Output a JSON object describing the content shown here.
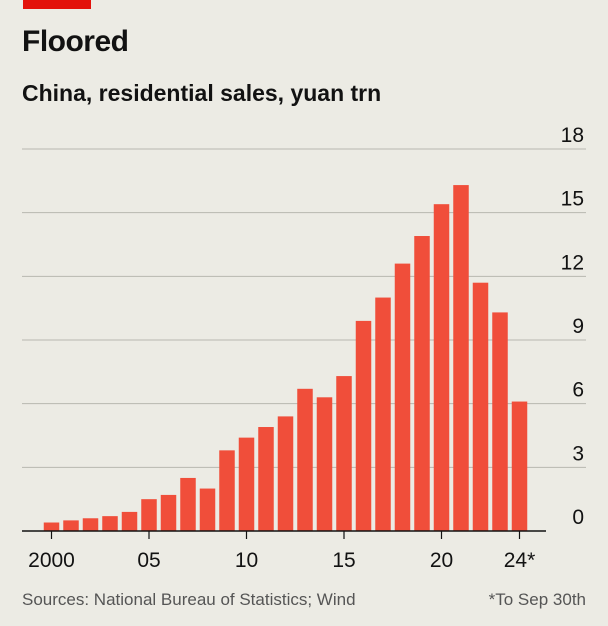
{
  "header": {
    "title": "Floored",
    "subtitle": "China, residential sales, yuan trn"
  },
  "footer": {
    "source": "Sources: National Bureau of Statistics; Wind",
    "note": "*To Sep 30th"
  },
  "colors": {
    "bar": "#f04e3a",
    "accent": "#e3120b",
    "grid": "#b7b7b0",
    "background": "#ecebe4"
  },
  "chart_data": {
    "type": "bar",
    "subtitle": "China, residential sales, yuan trn",
    "categories": [
      "2000",
      "2001",
      "2002",
      "2003",
      "2004",
      "2005",
      "2006",
      "2007",
      "2008",
      "2009",
      "2010",
      "2011",
      "2012",
      "2013",
      "2014",
      "2015",
      "2016",
      "2017",
      "2018",
      "2019",
      "2020",
      "2021",
      "2022",
      "2023",
      "2024*"
    ],
    "values": [
      0.4,
      0.5,
      0.6,
      0.7,
      0.9,
      1.5,
      1.7,
      2.5,
      2.0,
      3.8,
      4.4,
      4.9,
      5.4,
      6.7,
      6.3,
      7.3,
      9.9,
      11.0,
      12.6,
      13.9,
      15.4,
      16.3,
      11.7,
      10.3,
      6.1
    ],
    "xticks": [
      {
        "index": 0,
        "label": "2000"
      },
      {
        "index": 5,
        "label": "05"
      },
      {
        "index": 10,
        "label": "10"
      },
      {
        "index": 15,
        "label": "15"
      },
      {
        "index": 20,
        "label": "20"
      },
      {
        "index": 24,
        "label": "24*"
      }
    ],
    "yticks": [
      0,
      3,
      6,
      9,
      12,
      15,
      18
    ],
    "ylim": [
      0,
      18
    ],
    "grid": true,
    "yaxis_position": "right",
    "xlabel": "",
    "ylabel": ""
  }
}
